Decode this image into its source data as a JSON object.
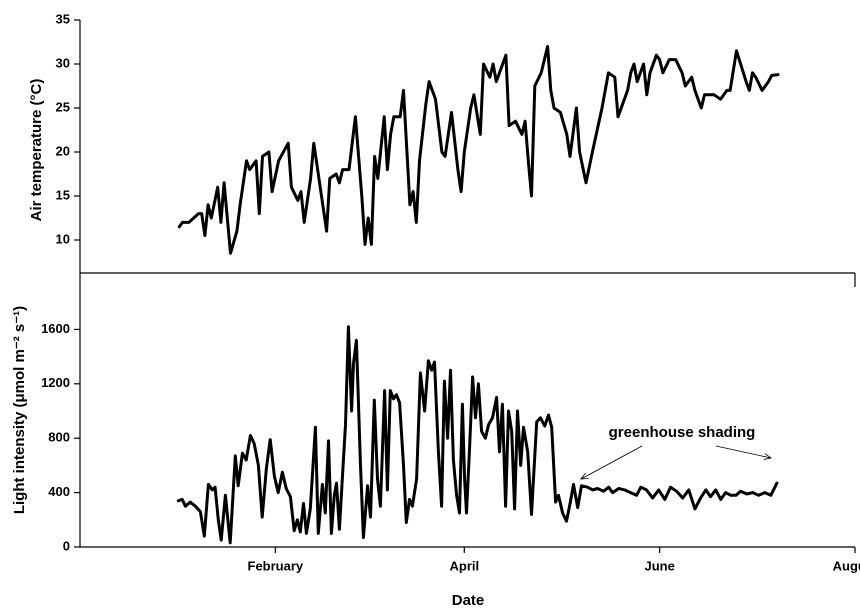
{
  "chart_data": [
    {
      "type": "line",
      "ylabel": "Air temperature (°C)",
      "color": "#000000",
      "xlim": [
        -61,
        181
      ],
      "ylim": [
        6.25,
        35
      ],
      "yticks": [
        10,
        15,
        20,
        25,
        30,
        35
      ],
      "x": [
        -30,
        -29,
        -27,
        -24,
        -23,
        -22,
        -21,
        -20,
        -18,
        -17,
        -16,
        -14,
        -12,
        -11,
        -9,
        -8,
        -6,
        -5,
        -4,
        -2,
        -1,
        1,
        4,
        5,
        7,
        8,
        9,
        11,
        12,
        14,
        16,
        17,
        19,
        20,
        21,
        23,
        25,
        27,
        28,
        29,
        30,
        31,
        32,
        34,
        35,
        36,
        37,
        39,
        40,
        42,
        43,
        44,
        45,
        47,
        48,
        50,
        52,
        53,
        55,
        57,
        58,
        59,
        61,
        62,
        64,
        65,
        67,
        68,
        69,
        70,
        72,
        73,
        75,
        77,
        78,
        79,
        80,
        81,
        83,
        85,
        86,
        87,
        89,
        91,
        92,
        94,
        95,
        97,
        99,
        102,
        104,
        106,
        107,
        110,
        111,
        112,
        113,
        115,
        116,
        117,
        119,
        120,
        121,
        123,
        124,
        125,
        127,
        128,
        130,
        131,
        133,
        134,
        137,
        139,
        141,
        142,
        144,
        147,
        148,
        149,
        150,
        152,
        154,
        155,
        157
      ],
      "values": [
        11.5,
        12,
        12,
        13,
        13,
        10.5,
        14,
        12.5,
        16,
        12,
        16.5,
        8.5,
        11,
        14,
        19,
        18,
        19,
        13,
        19.5,
        20,
        15.5,
        19,
        21,
        16,
        14.5,
        15.5,
        12,
        17,
        21,
        16,
        11,
        17,
        17.5,
        16.5,
        18,
        18,
        24,
        15,
        9.5,
        12.5,
        9.5,
        19.5,
        17,
        24,
        18,
        22,
        24,
        24,
        27,
        14,
        15.5,
        12,
        19,
        25.5,
        28,
        26,
        20,
        19.5,
        24.5,
        18,
        15.5,
        20,
        25,
        26.5,
        22,
        30,
        28.5,
        30,
        28,
        29,
        31,
        23,
        23.5,
        22,
        23.5,
        19,
        15,
        27.5,
        29,
        32,
        27,
        25,
        24.5,
        22,
        19.5,
        25,
        20,
        16.5,
        20,
        25,
        29,
        28.5,
        24,
        27,
        29,
        30,
        28,
        30,
        26.5,
        29,
        31,
        30.5,
        29,
        30.5,
        30.5,
        30.5,
        29,
        27.5,
        28.5,
        27,
        25,
        26.5,
        26.5,
        26,
        27,
        27,
        31.5,
        28,
        27,
        29,
        28.5,
        27,
        28,
        28.7,
        28.8
      ]
    },
    {
      "type": "line",
      "ylabel": "Light intensity (μmol m⁻² s⁻¹)",
      "xlabel": "Date",
      "color": "#000000",
      "annotation": "greenhouse shading",
      "xlim": [
        -61,
        181
      ],
      "ylim": [
        0,
        2000
      ],
      "yticks": [
        0,
        400,
        800,
        1200,
        1600
      ],
      "xticks": [
        {
          "value": 0,
          "label": "February"
        },
        {
          "value": 59,
          "label": "April"
        },
        {
          "value": 120,
          "label": "June"
        },
        {
          "value": 181,
          "label": "August"
        }
      ],
      "x": [
        -30.3,
        -29.1,
        -28.1,
        -26.6,
        -25,
        -23.4,
        -22.2,
        -20.9,
        -19.7,
        -18.8,
        -17.8,
        -16.9,
        -15.6,
        -14.1,
        -12.5,
        -11.6,
        -10.3,
        -9.1,
        -7.8,
        -6.6,
        -5.3,
        -4.1,
        -2.8,
        -1.6,
        -0.3,
        0.9,
        2.2,
        3.4,
        4.7,
        5.9,
        6.9,
        7.8,
        8.8,
        9.7,
        10.9,
        12.5,
        13.4,
        14.7,
        15.6,
        16.6,
        17.5,
        18.4,
        19.1,
        20,
        20.9,
        21.9,
        22.8,
        23.8,
        24.4,
        25.3,
        26.6,
        27.5,
        28.8,
        29.7,
        30.9,
        31.9,
        32.8,
        34.1,
        35,
        35.9,
        36.9,
        37.8,
        38.8,
        40,
        40.9,
        41.9,
        42.8,
        44.1,
        45.3,
        46.6,
        47.8,
        48.8,
        49.7,
        50.9,
        51.9,
        52.8,
        53.8,
        54.7,
        55.6,
        56.6,
        57.5,
        58.4,
        59.1,
        59.7,
        60.6,
        61.6,
        62.5,
        63.4,
        64.4,
        65.6,
        66.6,
        67.8,
        69.1,
        70,
        70.9,
        71.9,
        72.8,
        73.8,
        74.7,
        75.6,
        76.6,
        77.5,
        78.8,
        80,
        81.6,
        82.8,
        84.1,
        85.3,
        86.3,
        87.5,
        88.4,
        89.7,
        90.9,
        92.2,
        93.1,
        94.4,
        95.6,
        97.5,
        99.1,
        100.6,
        102.5,
        104.1,
        105.3,
        107.2,
        109.1,
        110.9,
        112.8,
        114.1,
        115.9,
        117.8,
        119.7,
        121.6,
        123.4,
        125.3,
        127.2,
        129.1,
        131,
        132.8,
        134.4,
        135.9,
        137.5,
        139.1,
        140.6,
        142.2,
        143.8,
        145.3,
        147.2,
        149.1,
        150.9,
        152.8,
        154.7,
        156.6
      ],
      "values": [
        340,
        350,
        300,
        330,
        300,
        260,
        80,
        460,
        420,
        440,
        200,
        50,
        380,
        30,
        670,
        450,
        690,
        640,
        820,
        760,
        600,
        220,
        580,
        790,
        520,
        400,
        550,
        430,
        370,
        120,
        200,
        110,
        320,
        100,
        280,
        880,
        100,
        460,
        250,
        780,
        100,
        380,
        470,
        130,
        500,
        900,
        1620,
        1000,
        1350,
        1520,
        600,
        70,
        450,
        220,
        1080,
        500,
        300,
        1150,
        420,
        1150,
        1090,
        1120,
        1060,
        600,
        180,
        350,
        300,
        500,
        1280,
        1000,
        1370,
        1300,
        1360,
        700,
        300,
        1220,
        800,
        1300,
        640,
        380,
        250,
        1050,
        500,
        250,
        700,
        1250,
        950,
        1200,
        850,
        800,
        900,
        950,
        1100,
        700,
        1050,
        300,
        1000,
        850,
        280,
        1000,
        600,
        880,
        700,
        240,
        920,
        950,
        890,
        970,
        880,
        330,
        380,
        250,
        190,
        340,
        460,
        290,
        450,
        440,
        420,
        430,
        410,
        440,
        400,
        430,
        420,
        400,
        380,
        440,
        420,
        360,
        420,
        350,
        440,
        410,
        360,
        420,
        280,
        360,
        420,
        370,
        420,
        350,
        400,
        380,
        380,
        410,
        390,
        400,
        380,
        400,
        380,
        470
      ]
    }
  ]
}
